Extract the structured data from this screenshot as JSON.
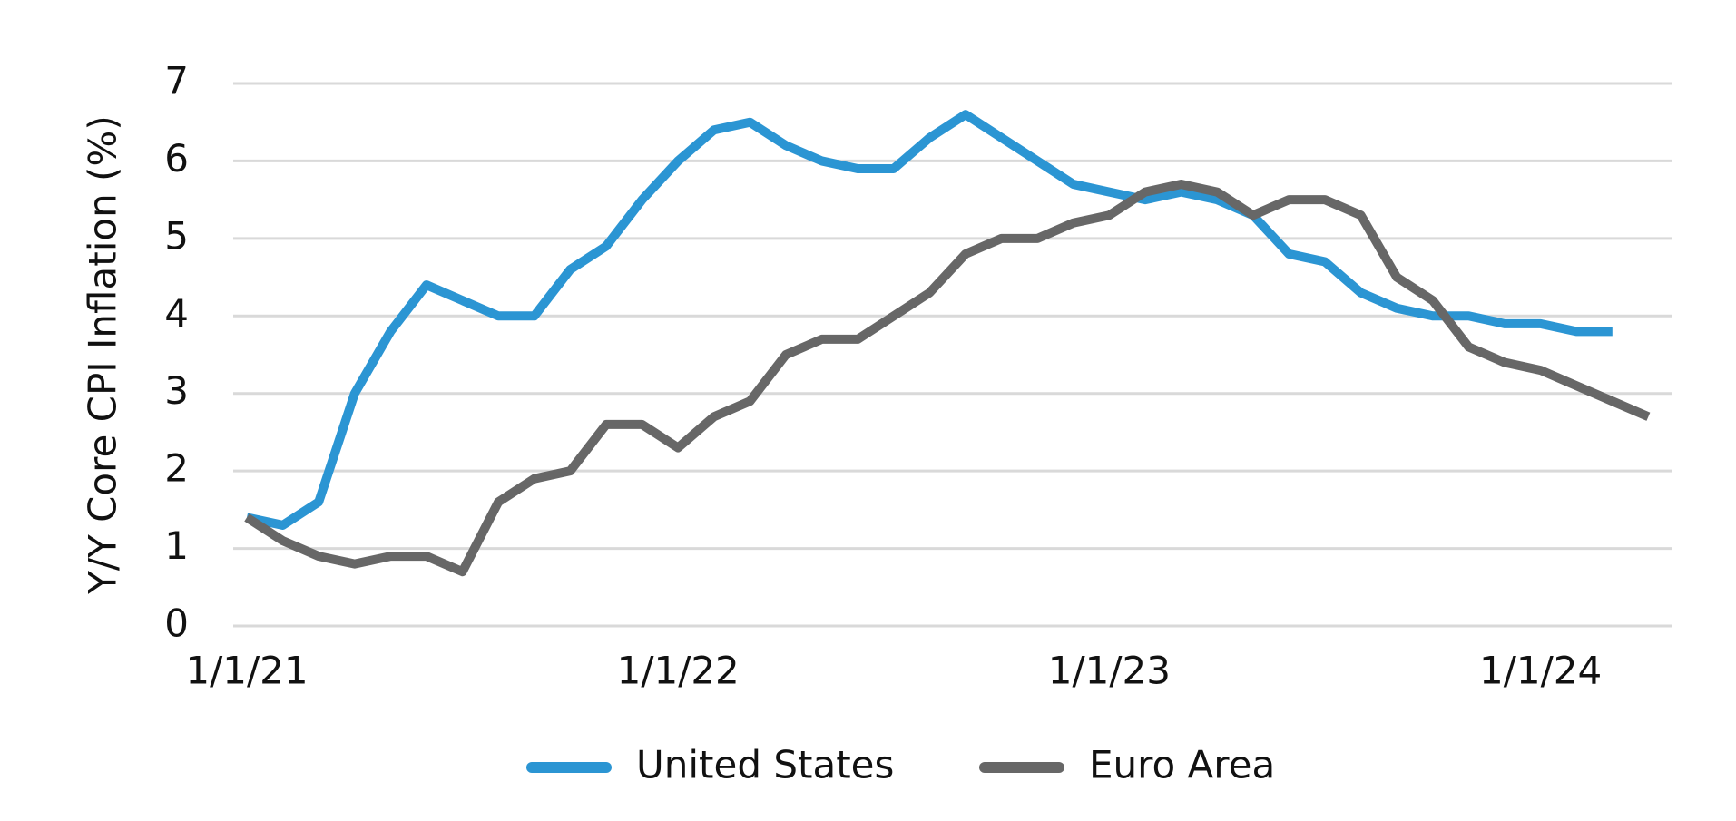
{
  "chart_data": {
    "type": "line",
    "y_label": "Y/Y Core CPI Inflation (%)",
    "categories": [
      "1/1/21",
      null,
      null,
      null,
      null,
      null,
      null,
      null,
      null,
      null,
      null,
      null,
      "1/1/22",
      null,
      null,
      null,
      null,
      null,
      null,
      null,
      null,
      null,
      null,
      null,
      "1/1/23",
      null,
      null,
      null,
      null,
      null,
      null,
      null,
      null,
      null,
      null,
      null,
      "1/1/24",
      null,
      null,
      null
    ],
    "series": [
      {
        "name": "United States",
        "color": "#2b95d3",
        "values": [
          1.4,
          1.3,
          1.6,
          3.0,
          3.8,
          4.4,
          4.2,
          4.0,
          4.0,
          4.6,
          4.9,
          5.5,
          6.0,
          6.4,
          6.5,
          6.2,
          6.0,
          5.9,
          5.9,
          6.3,
          6.6,
          6.3,
          6.0,
          5.7,
          5.6,
          5.5,
          5.6,
          5.5,
          5.3,
          4.8,
          4.7,
          4.3,
          4.1,
          4.0,
          4.0,
          3.9,
          3.9,
          3.8,
          3.8,
          null
        ]
      },
      {
        "name": "Euro Area",
        "color": "#676767",
        "values": [
          1.4,
          1.1,
          0.9,
          0.8,
          0.9,
          0.9,
          0.7,
          1.6,
          1.9,
          2.0,
          2.6,
          2.6,
          2.3,
          2.7,
          2.9,
          3.5,
          3.7,
          3.7,
          4.0,
          4.3,
          4.8,
          5.0,
          5.0,
          5.2,
          5.3,
          5.6,
          5.7,
          5.6,
          5.3,
          5.5,
          5.5,
          5.3,
          4.5,
          4.2,
          3.6,
          3.4,
          3.3,
          3.1,
          2.9,
          2.7
        ]
      }
    ],
    "ylim": [
      0,
      7
    ],
    "yticks": [
      0,
      1,
      2,
      3,
      4,
      5,
      6,
      7
    ],
    "grid": true,
    "legend": "bottom"
  }
}
